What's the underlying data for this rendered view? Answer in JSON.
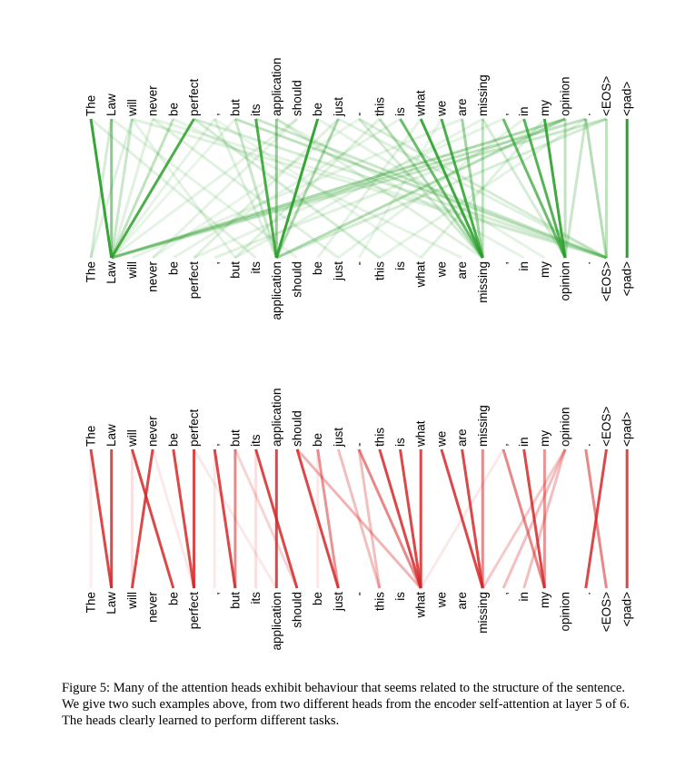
{
  "figure": {
    "tokens": [
      "The",
      "Law",
      "will",
      "never",
      "be",
      "perfect",
      ",",
      "but",
      "its",
      "application",
      "should",
      "be",
      "just",
      "-",
      "this",
      "is",
      "what",
      "we",
      "are",
      "missing",
      ",",
      "in",
      "my",
      "opinion",
      ".",
      "<EOS>",
      "<pad>"
    ],
    "panels": [
      {
        "name": "green-head",
        "color": "#2ca02c",
        "links": [
          {
            "from": 0,
            "to": 1,
            "w": 0.95
          },
          {
            "from": 1,
            "to": 1,
            "w": 0.55
          },
          {
            "from": 2,
            "to": 1,
            "w": 0.25
          },
          {
            "from": 3,
            "to": 1,
            "w": 0.15
          },
          {
            "from": 4,
            "to": 1,
            "w": 0.3
          },
          {
            "from": 5,
            "to": 1,
            "w": 0.85
          },
          {
            "from": 6,
            "to": 1,
            "w": 0.12
          },
          {
            "from": 7,
            "to": 1,
            "w": 0.1
          },
          {
            "from": 10,
            "to": 1,
            "w": 0.12
          },
          {
            "from": 23,
            "to": 1,
            "w": 0.4
          },
          {
            "from": 24,
            "to": 1,
            "w": 0.3
          },
          {
            "from": 25,
            "to": 1,
            "w": 0.25
          },
          {
            "from": 1,
            "to": 0,
            "w": 0.2
          },
          {
            "from": 2,
            "to": 0,
            "w": 0.15
          },
          {
            "from": 7,
            "to": 9,
            "w": 0.25
          },
          {
            "from": 8,
            "to": 9,
            "w": 0.85
          },
          {
            "from": 9,
            "to": 9,
            "w": 0.5
          },
          {
            "from": 11,
            "to": 9,
            "w": 0.95
          },
          {
            "from": 12,
            "to": 9,
            "w": 0.4
          },
          {
            "from": 6,
            "to": 9,
            "w": 0.15
          },
          {
            "from": 23,
            "to": 9,
            "w": 0.35
          },
          {
            "from": 25,
            "to": 9,
            "w": 0.2
          },
          {
            "from": 14,
            "to": 19,
            "w": 0.35
          },
          {
            "from": 15,
            "to": 19,
            "w": 0.7
          },
          {
            "from": 16,
            "to": 19,
            "w": 0.9
          },
          {
            "from": 17,
            "to": 19,
            "w": 0.85
          },
          {
            "from": 18,
            "to": 19,
            "w": 0.45
          },
          {
            "from": 19,
            "to": 19,
            "w": 0.3
          },
          {
            "from": 13,
            "to": 19,
            "w": 0.2
          },
          {
            "from": 9,
            "to": 19,
            "w": 0.15
          },
          {
            "from": 20,
            "to": 23,
            "w": 0.7
          },
          {
            "from": 21,
            "to": 23,
            "w": 0.8
          },
          {
            "from": 22,
            "to": 23,
            "w": 0.9
          },
          {
            "from": 23,
            "to": 23,
            "w": 0.3
          },
          {
            "from": 24,
            "to": 23,
            "w": 0.25
          },
          {
            "from": 19,
            "to": 23,
            "w": 0.2
          },
          {
            "from": 7,
            "to": 25,
            "w": 0.3
          },
          {
            "from": 8,
            "to": 25,
            "w": 0.25
          },
          {
            "from": 5,
            "to": 25,
            "w": 0.2
          },
          {
            "from": 2,
            "to": 25,
            "w": 0.15
          },
          {
            "from": 13,
            "to": 25,
            "w": 0.2
          },
          {
            "from": 24,
            "to": 25,
            "w": 0.35
          },
          {
            "from": 25,
            "to": 25,
            "w": 0.3
          },
          {
            "from": 3,
            "to": 25,
            "w": 0.12
          },
          {
            "from": 26,
            "to": 26,
            "w": 1.0
          },
          {
            "from": 0,
            "to": 8,
            "w": 0.15
          },
          {
            "from": 1,
            "to": 10,
            "w": 0.12
          },
          {
            "from": 3,
            "to": 12,
            "w": 0.15
          },
          {
            "from": 5,
            "to": 14,
            "w": 0.2
          },
          {
            "from": 6,
            "to": 16,
            "w": 0.1
          },
          {
            "from": 10,
            "to": 3,
            "w": 0.12
          },
          {
            "from": 12,
            "to": 5,
            "w": 0.15
          },
          {
            "from": 14,
            "to": 7,
            "w": 0.15
          },
          {
            "from": 16,
            "to": 11,
            "w": 0.12
          },
          {
            "from": 18,
            "to": 2,
            "w": 0.12
          },
          {
            "from": 21,
            "to": 12,
            "w": 0.12
          },
          {
            "from": 23,
            "to": 6,
            "w": 0.15
          },
          {
            "from": 9,
            "to": 21,
            "w": 0.12
          },
          {
            "from": 12,
            "to": 25,
            "w": 0.15
          },
          {
            "from": 15,
            "to": 4,
            "w": 0.12
          },
          {
            "from": 19,
            "to": 7,
            "w": 0.12
          },
          {
            "from": 22,
            "to": 16,
            "w": 0.15
          },
          {
            "from": 24,
            "to": 14,
            "w": 0.12
          },
          {
            "from": 2,
            "to": 7,
            "w": 0.12
          },
          {
            "from": 4,
            "to": 18,
            "w": 0.12
          },
          {
            "from": 11,
            "to": 22,
            "w": 0.12
          },
          {
            "from": 13,
            "to": 3,
            "w": 0.1
          },
          {
            "from": 17,
            "to": 13,
            "w": 0.1
          },
          {
            "from": 20,
            "to": 5,
            "w": 0.12
          }
        ]
      },
      {
        "name": "red-head",
        "color": "#d62728",
        "links": [
          {
            "from": 0,
            "to": 1,
            "w": 0.85
          },
          {
            "from": 1,
            "to": 1,
            "w": 0.85
          },
          {
            "from": 2,
            "to": 4,
            "w": 0.85
          },
          {
            "from": 3,
            "to": 2,
            "w": 0.85
          },
          {
            "from": 4,
            "to": 5,
            "w": 0.85
          },
          {
            "from": 5,
            "to": 5,
            "w": 0.85
          },
          {
            "from": 6,
            "to": 7,
            "w": 0.85
          },
          {
            "from": 7,
            "to": 7,
            "w": 0.55
          },
          {
            "from": 8,
            "to": 10,
            "w": 0.85
          },
          {
            "from": 9,
            "to": 9,
            "w": 0.85
          },
          {
            "from": 10,
            "to": 12,
            "w": 0.85
          },
          {
            "from": 11,
            "to": 12,
            "w": 0.5
          },
          {
            "from": 7,
            "to": 10,
            "w": 0.2
          },
          {
            "from": 13,
            "to": 16,
            "w": 0.55
          },
          {
            "from": 14,
            "to": 16,
            "w": 0.85
          },
          {
            "from": 15,
            "to": 16,
            "w": 0.85
          },
          {
            "from": 16,
            "to": 16,
            "w": 0.85
          },
          {
            "from": 12,
            "to": 14,
            "w": 0.3
          },
          {
            "from": 10,
            "to": 16,
            "w": 0.35
          },
          {
            "from": 13,
            "to": 14,
            "w": 0.3
          },
          {
            "from": 17,
            "to": 19,
            "w": 0.85
          },
          {
            "from": 18,
            "to": 19,
            "w": 0.85
          },
          {
            "from": 19,
            "to": 19,
            "w": 0.55
          },
          {
            "from": 20,
            "to": 22,
            "w": 0.55
          },
          {
            "from": 21,
            "to": 22,
            "w": 0.85
          },
          {
            "from": 22,
            "to": 22,
            "w": 0.5
          },
          {
            "from": 23,
            "to": 21,
            "w": 0.3
          },
          {
            "from": 23,
            "to": 20,
            "w": 0.3
          },
          {
            "from": 23,
            "to": 19,
            "w": 0.25
          },
          {
            "from": 24,
            "to": 25,
            "w": 0.55
          },
          {
            "from": 25,
            "to": 24,
            "w": 0.85
          },
          {
            "from": 26,
            "to": 26,
            "w": 0.85
          },
          {
            "from": 2,
            "to": 2,
            "w": 0.15
          },
          {
            "from": 8,
            "to": 8,
            "w": 0.15
          },
          {
            "from": 0,
            "to": 0,
            "w": 0.08
          },
          {
            "from": 6,
            "to": 6,
            "w": 0.1
          },
          {
            "from": 3,
            "to": 5,
            "w": 0.1
          },
          {
            "from": 11,
            "to": 11,
            "w": 0.1
          },
          {
            "from": 20,
            "to": 16,
            "w": 0.1
          },
          {
            "from": 5,
            "to": 9,
            "w": 0.1
          }
        ]
      }
    ]
  },
  "caption": "Figure 5: Many of the attention heads exhibit behaviour that seems related to the structure of the sentence. We give two such examples above, from two different heads from the encoder self-attention at layer 5 of 6. The heads clearly learned to perform different tasks."
}
